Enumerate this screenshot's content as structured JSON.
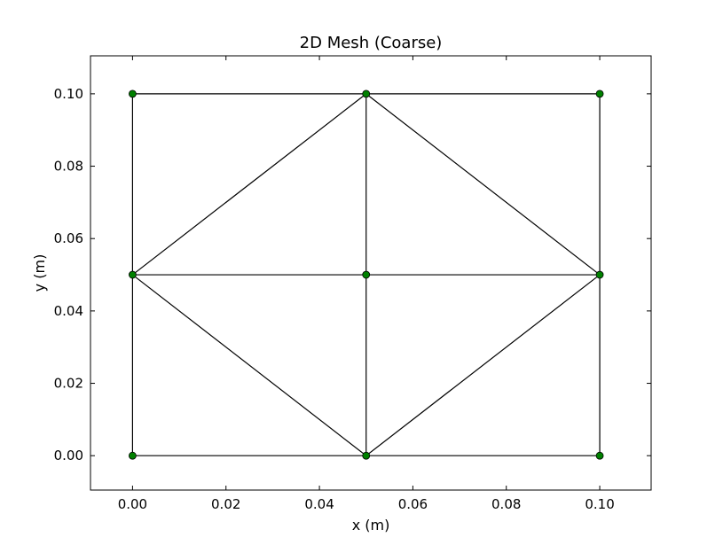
{
  "chart_data": {
    "type": "mesh",
    "title": "2D Mesh (Coarse)",
    "xlabel": "x (m)",
    "ylabel": "y (m)",
    "xlim": [
      -0.009,
      0.111
    ],
    "ylim": [
      -0.0095,
      0.1105
    ],
    "xticks": [
      0.0,
      0.02,
      0.04,
      0.06,
      0.08,
      0.1
    ],
    "yticks": [
      0.0,
      0.02,
      0.04,
      0.06,
      0.08,
      0.1
    ],
    "xtick_labels": [
      "0.00",
      "0.02",
      "0.04",
      "0.06",
      "0.08",
      "0.10"
    ],
    "ytick_labels": [
      "0.00",
      "0.02",
      "0.04",
      "0.06",
      "0.08",
      "0.10"
    ],
    "grid": false,
    "nodes": [
      {
        "id": 0,
        "x": 0.0,
        "y": 0.0
      },
      {
        "id": 1,
        "x": 0.05,
        "y": 0.0
      },
      {
        "id": 2,
        "x": 0.1,
        "y": 0.0
      },
      {
        "id": 3,
        "x": 0.0,
        "y": 0.05
      },
      {
        "id": 4,
        "x": 0.05,
        "y": 0.05
      },
      {
        "id": 5,
        "x": 0.1,
        "y": 0.05
      },
      {
        "id": 6,
        "x": 0.0,
        "y": 0.1
      },
      {
        "id": 7,
        "x": 0.05,
        "y": 0.1
      },
      {
        "id": 8,
        "x": 0.1,
        "y": 0.1
      }
    ],
    "edges": [
      [
        0,
        1
      ],
      [
        1,
        2
      ],
      [
        6,
        7
      ],
      [
        7,
        8
      ],
      [
        3,
        4
      ],
      [
        4,
        5
      ],
      [
        0,
        3
      ],
      [
        3,
        6
      ],
      [
        2,
        5
      ],
      [
        5,
        8
      ],
      [
        1,
        4
      ],
      [
        4,
        7
      ],
      [
        3,
        7
      ],
      [
        7,
        5
      ],
      [
        3,
        1
      ],
      [
        1,
        5
      ]
    ],
    "colors": {
      "edge": "#000000",
      "node_fill": "#008000",
      "node_stroke": "#000000",
      "frame": "#000000"
    }
  }
}
